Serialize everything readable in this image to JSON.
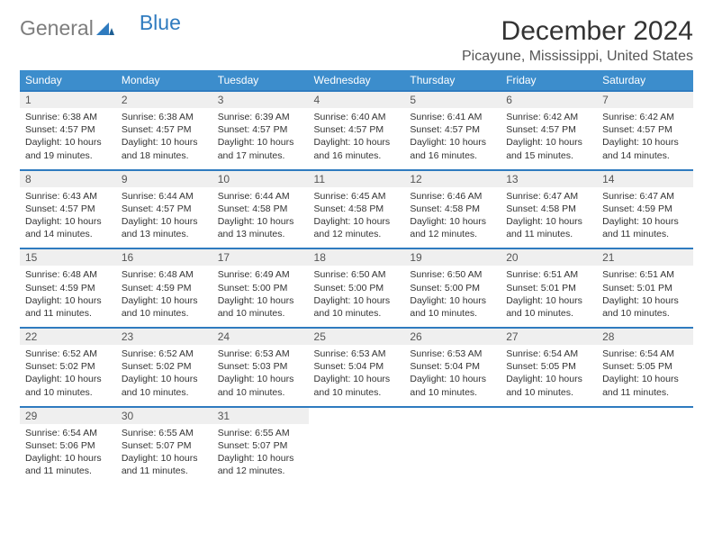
{
  "logo": {
    "left": "General",
    "right": "Blue"
  },
  "title": "December 2024",
  "location": "Picayune, Mississippi, United States",
  "colors": {
    "header_bg": "#3c8dcc",
    "header_text": "#ffffff",
    "row_border": "#2f7bbf",
    "daynum_bg": "#efefef",
    "logo_gray": "#7d7d7d",
    "logo_blue": "#2f7bbf",
    "page_bg": "#ffffff"
  },
  "day_headers": [
    "Sunday",
    "Monday",
    "Tuesday",
    "Wednesday",
    "Thursday",
    "Friday",
    "Saturday"
  ],
  "weeks": [
    [
      {
        "n": "1",
        "sr": "6:38 AM",
        "ss": "4:57 PM",
        "dl": "10 hours and 19 minutes."
      },
      {
        "n": "2",
        "sr": "6:38 AM",
        "ss": "4:57 PM",
        "dl": "10 hours and 18 minutes."
      },
      {
        "n": "3",
        "sr": "6:39 AM",
        "ss": "4:57 PM",
        "dl": "10 hours and 17 minutes."
      },
      {
        "n": "4",
        "sr": "6:40 AM",
        "ss": "4:57 PM",
        "dl": "10 hours and 16 minutes."
      },
      {
        "n": "5",
        "sr": "6:41 AM",
        "ss": "4:57 PM",
        "dl": "10 hours and 16 minutes."
      },
      {
        "n": "6",
        "sr": "6:42 AM",
        "ss": "4:57 PM",
        "dl": "10 hours and 15 minutes."
      },
      {
        "n": "7",
        "sr": "6:42 AM",
        "ss": "4:57 PM",
        "dl": "10 hours and 14 minutes."
      }
    ],
    [
      {
        "n": "8",
        "sr": "6:43 AM",
        "ss": "4:57 PM",
        "dl": "10 hours and 14 minutes."
      },
      {
        "n": "9",
        "sr": "6:44 AM",
        "ss": "4:57 PM",
        "dl": "10 hours and 13 minutes."
      },
      {
        "n": "10",
        "sr": "6:44 AM",
        "ss": "4:58 PM",
        "dl": "10 hours and 13 minutes."
      },
      {
        "n": "11",
        "sr": "6:45 AM",
        "ss": "4:58 PM",
        "dl": "10 hours and 12 minutes."
      },
      {
        "n": "12",
        "sr": "6:46 AM",
        "ss": "4:58 PM",
        "dl": "10 hours and 12 minutes."
      },
      {
        "n": "13",
        "sr": "6:47 AM",
        "ss": "4:58 PM",
        "dl": "10 hours and 11 minutes."
      },
      {
        "n": "14",
        "sr": "6:47 AM",
        "ss": "4:59 PM",
        "dl": "10 hours and 11 minutes."
      }
    ],
    [
      {
        "n": "15",
        "sr": "6:48 AM",
        "ss": "4:59 PM",
        "dl": "10 hours and 11 minutes."
      },
      {
        "n": "16",
        "sr": "6:48 AM",
        "ss": "4:59 PM",
        "dl": "10 hours and 10 minutes."
      },
      {
        "n": "17",
        "sr": "6:49 AM",
        "ss": "5:00 PM",
        "dl": "10 hours and 10 minutes."
      },
      {
        "n": "18",
        "sr": "6:50 AM",
        "ss": "5:00 PM",
        "dl": "10 hours and 10 minutes."
      },
      {
        "n": "19",
        "sr": "6:50 AM",
        "ss": "5:00 PM",
        "dl": "10 hours and 10 minutes."
      },
      {
        "n": "20",
        "sr": "6:51 AM",
        "ss": "5:01 PM",
        "dl": "10 hours and 10 minutes."
      },
      {
        "n": "21",
        "sr": "6:51 AM",
        "ss": "5:01 PM",
        "dl": "10 hours and 10 minutes."
      }
    ],
    [
      {
        "n": "22",
        "sr": "6:52 AM",
        "ss": "5:02 PM",
        "dl": "10 hours and 10 minutes."
      },
      {
        "n": "23",
        "sr": "6:52 AM",
        "ss": "5:02 PM",
        "dl": "10 hours and 10 minutes."
      },
      {
        "n": "24",
        "sr": "6:53 AM",
        "ss": "5:03 PM",
        "dl": "10 hours and 10 minutes."
      },
      {
        "n": "25",
        "sr": "6:53 AM",
        "ss": "5:04 PM",
        "dl": "10 hours and 10 minutes."
      },
      {
        "n": "26",
        "sr": "6:53 AM",
        "ss": "5:04 PM",
        "dl": "10 hours and 10 minutes."
      },
      {
        "n": "27",
        "sr": "6:54 AM",
        "ss": "5:05 PM",
        "dl": "10 hours and 10 minutes."
      },
      {
        "n": "28",
        "sr": "6:54 AM",
        "ss": "5:05 PM",
        "dl": "10 hours and 11 minutes."
      }
    ],
    [
      {
        "n": "29",
        "sr": "6:54 AM",
        "ss": "5:06 PM",
        "dl": "10 hours and 11 minutes."
      },
      {
        "n": "30",
        "sr": "6:55 AM",
        "ss": "5:07 PM",
        "dl": "10 hours and 11 minutes."
      },
      {
        "n": "31",
        "sr": "6:55 AM",
        "ss": "5:07 PM",
        "dl": "10 hours and 12 minutes."
      },
      null,
      null,
      null,
      null
    ]
  ],
  "labels": {
    "sunrise": "Sunrise: ",
    "sunset": "Sunset: ",
    "daylight": "Daylight: "
  }
}
